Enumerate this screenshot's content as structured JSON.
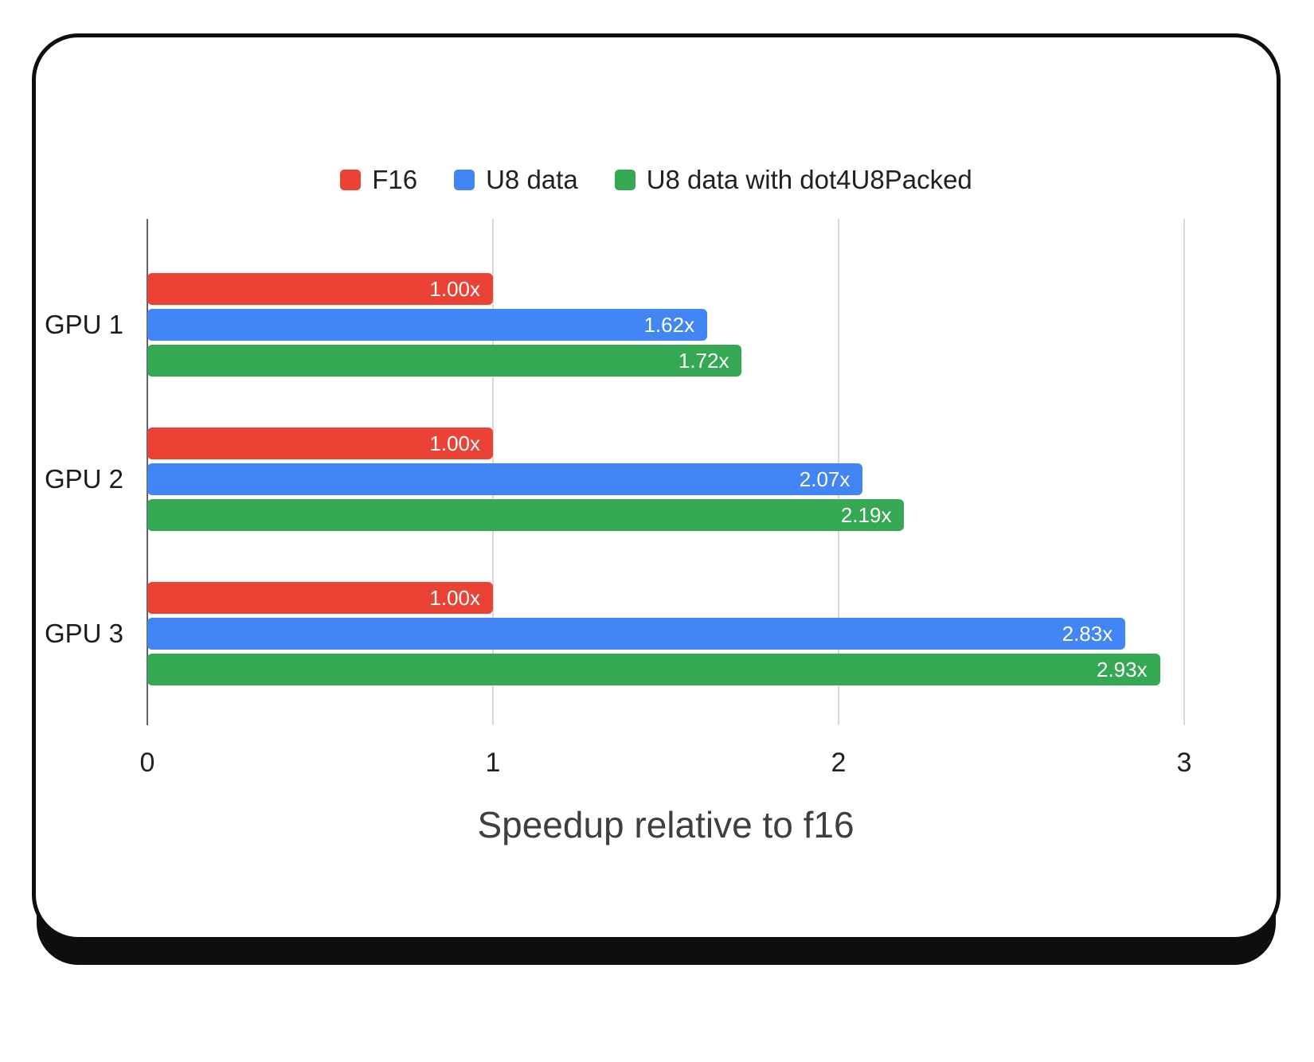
{
  "chart_data": {
    "type": "bar",
    "orientation": "horizontal",
    "categories": [
      "GPU 1",
      "GPU 2",
      "GPU 3"
    ],
    "series": [
      {
        "name": "F16",
        "color": "#ea4335",
        "values": [
          1.0,
          1.0,
          1.0
        ],
        "labels": [
          "1.00x",
          "1.00x",
          "1.00x"
        ]
      },
      {
        "name": "U8 data",
        "color": "#4285f4",
        "values": [
          1.62,
          2.07,
          2.83
        ],
        "labels": [
          "1.62x",
          "2.07x",
          "2.83x"
        ]
      },
      {
        "name": "U8 data with dot4U8Packed",
        "color": "#34a853",
        "values": [
          1.72,
          2.19,
          2.93
        ],
        "labels": [
          "1.72x",
          "2.19x",
          "2.93x"
        ]
      }
    ],
    "xlabel": "Speedup relative to f16",
    "xlim": [
      0,
      3
    ],
    "xticks": [
      0,
      1,
      2,
      3
    ],
    "legend_position": "top",
    "grid": true,
    "value_label_color": "#ffffff",
    "gridline_color": "#d9d9d9",
    "axisline_color": "#5f6368"
  }
}
